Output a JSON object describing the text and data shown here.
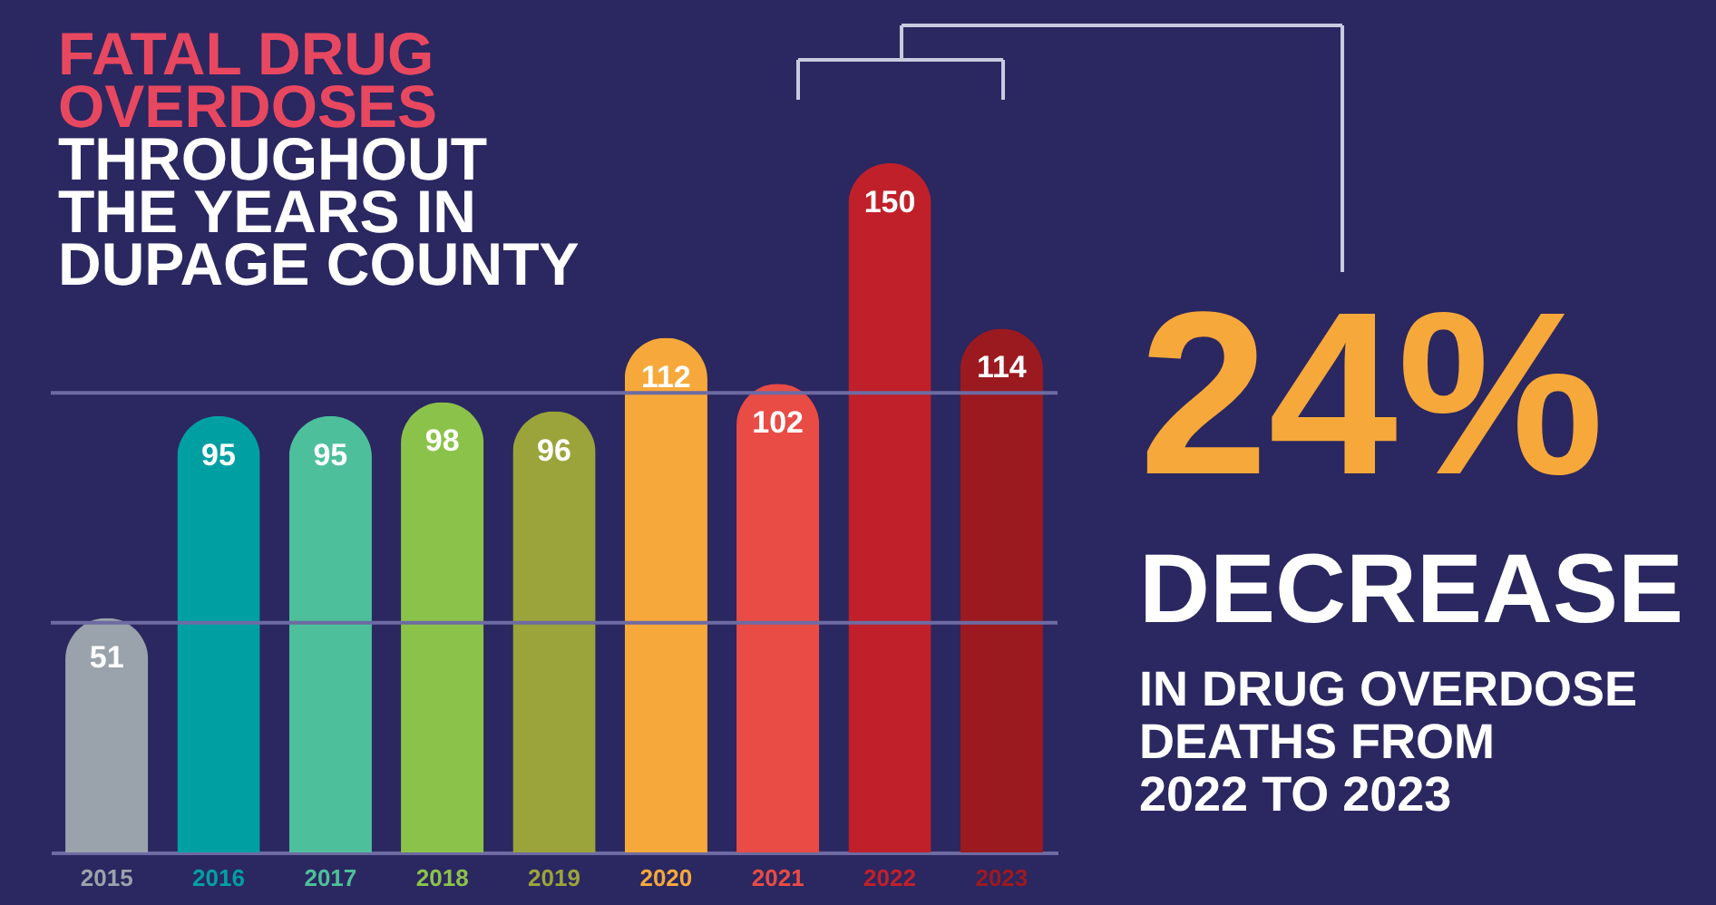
{
  "chart_data": {
    "type": "bar",
    "title": "FATAL DRUG OVERDOSES",
    "subtitle": "THROUGHOUT THE YEARS IN DUPAGE COUNTY",
    "categories": [
      "2015",
      "2016",
      "2017",
      "2018",
      "2019",
      "2020",
      "2021",
      "2022",
      "2023"
    ],
    "values": [
      51,
      95,
      95,
      98,
      96,
      112,
      102,
      150,
      114
    ],
    "colors": [
      "#9aa3ab",
      "#00a0a2",
      "#4dbf9a",
      "#8bc34a",
      "#9aa43a",
      "#f6a83a",
      "#e84c45",
      "#c0202a",
      "#9b1a20"
    ],
    "ref_lines": [
      {
        "axis": "y",
        "value": 50,
        "color": "#6e6ba3"
      },
      {
        "axis": "y",
        "value": 100,
        "color": "#6e6ba3"
      }
    ],
    "tick_labels": "x",
    "data_labels": true,
    "annotations": [
      "24%",
      "DECREASE",
      "IN DRUG OVERDOSE\nDEATHS FROM\n2022 TO 2023"
    ]
  }
}
